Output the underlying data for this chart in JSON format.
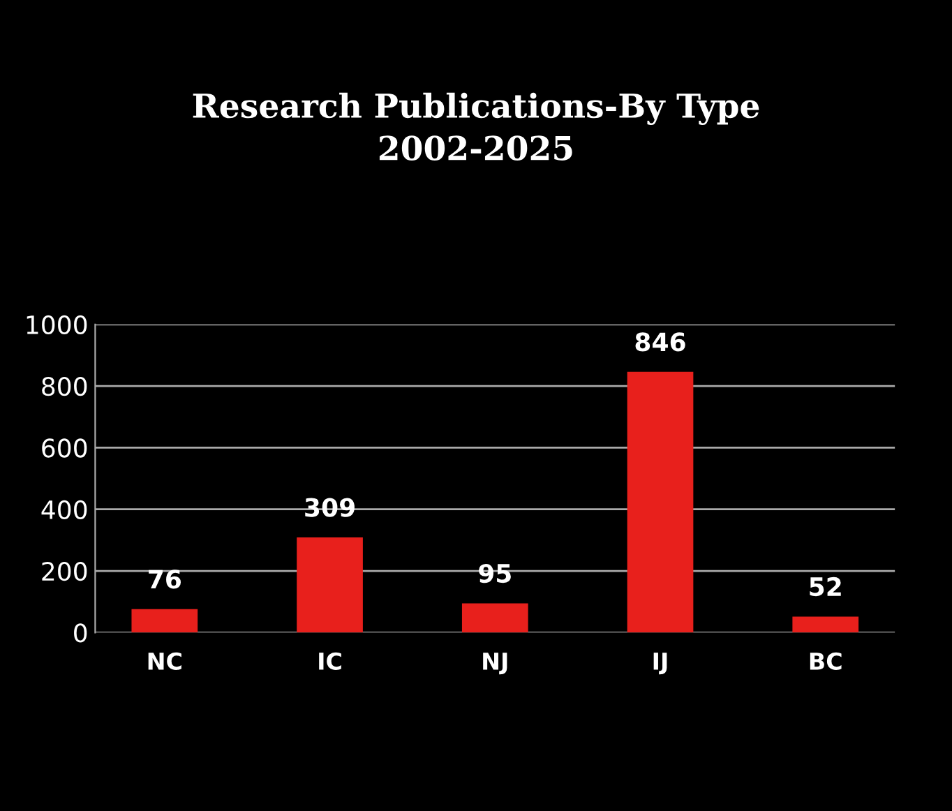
{
  "chart_data": {
    "type": "bar",
    "title": "Research Publications-By Type\n2002-2025",
    "categories": [
      "NC",
      "IC",
      "NJ",
      "IJ",
      "BC"
    ],
    "values": [
      76,
      309,
      95,
      846,
      52
    ],
    "color": "#e8201c",
    "ylim": [
      0,
      1000
    ],
    "yticks": [
      0,
      200,
      400,
      600,
      800,
      1000
    ],
    "grid": "y",
    "data_labels": true
  }
}
